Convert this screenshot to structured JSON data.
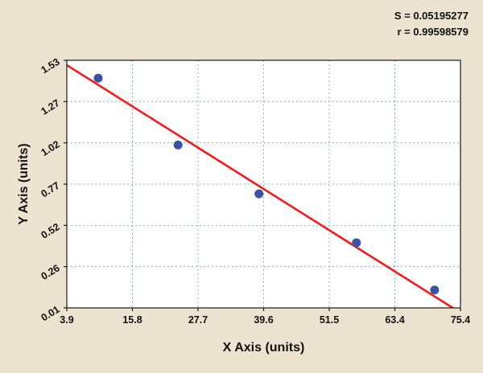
{
  "stats": {
    "s_value": "S = 0.05195277",
    "r_value": "r = 0.99598579"
  },
  "chart_data": {
    "type": "scatter",
    "title": "",
    "xlabel": "X Axis (units)",
    "ylabel": "Y Axis (units)",
    "xlim": [
      3.9,
      75.4
    ],
    "ylim": [
      0.01,
      1.53
    ],
    "x_tick_labels": [
      "3.9",
      "15.8",
      "27.7",
      "39.6",
      "51.5",
      "63.4",
      "75.4"
    ],
    "y_tick_labels": [
      "0.01",
      "0.26",
      "0.52",
      "0.77",
      "1.02",
      "1.27",
      "1.53"
    ],
    "grid": true,
    "grid_style": "dashed",
    "legend": "none",
    "points": [
      {
        "x": 9.6,
        "y": 1.42
      },
      {
        "x": 24.1,
        "y": 1.01
      },
      {
        "x": 38.8,
        "y": 0.71
      },
      {
        "x": 56.5,
        "y": 0.41
      },
      {
        "x": 70.7,
        "y": 0.12
      }
    ],
    "regression_line": {
      "slope": -0.02126,
      "intercept": 1.583
    },
    "colors": {
      "point": "#3b51a3",
      "line": "#ff1414",
      "grid": "#8fb3b3",
      "plot_border": "#1a1a1a",
      "plot_bg": "#ffffff",
      "page_bg": "#ece4d0",
      "text": "#111111"
    }
  }
}
